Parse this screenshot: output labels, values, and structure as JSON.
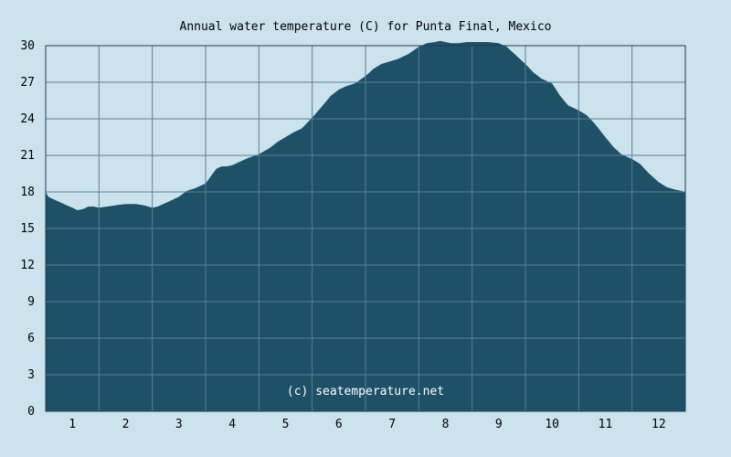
{
  "chart_data": {
    "type": "area",
    "title": "Annual water temperature (C) for Punta Final, Mexico",
    "watermark": "(c) seatemperature.net",
    "xlabel": "",
    "ylabel": "",
    "x_ticks": [
      "1",
      "2",
      "3",
      "4",
      "5",
      "6",
      "7",
      "8",
      "9",
      "10",
      "11",
      "12"
    ],
    "y_ticks": [
      "0",
      "3",
      "6",
      "9",
      "12",
      "15",
      "18",
      "21",
      "24",
      "27",
      "30"
    ],
    "ylim": [
      0,
      30
    ],
    "xlim_months": [
      0.5,
      12.5
    ],
    "grid": true,
    "colors": {
      "background": "#cce3ee",
      "fill": "#1e5068",
      "grid": "#5a7f94",
      "axis": "#1e3e52",
      "watermark": "#ffffff"
    },
    "series": [
      {
        "x": [
          0.5,
          0.55,
          0.6,
          0.75,
          0.9,
          1.0,
          1.1,
          1.2,
          1.3,
          1.4,
          1.5,
          1.65,
          1.8,
          2.0,
          2.2,
          2.35,
          2.5,
          2.6,
          2.8,
          3.0,
          3.15,
          3.3,
          3.5,
          3.6,
          3.7,
          3.8,
          3.9,
          4.0,
          4.15,
          4.3,
          4.5,
          4.7,
          4.85,
          5.0,
          5.15,
          5.3,
          5.5,
          5.7,
          5.85,
          6.0,
          6.15,
          6.3,
          6.5,
          6.65,
          6.8,
          6.95,
          7.1,
          7.3,
          7.5,
          7.65,
          7.8,
          7.9,
          8.0,
          8.1,
          8.25,
          8.4,
          8.6,
          8.8,
          9.0,
          9.15,
          9.3,
          9.5,
          9.65,
          9.8,
          10.0,
          10.15,
          10.3,
          10.5,
          10.65,
          10.8,
          11.0,
          11.15,
          11.3,
          11.5,
          11.65,
          11.8,
          12.0,
          12.15,
          12.3,
          12.42,
          12.5
        ],
        "y": [
          18.0,
          17.6,
          17.5,
          17.2,
          16.9,
          16.7,
          16.5,
          16.6,
          16.8,
          16.8,
          16.7,
          16.8,
          16.9,
          17.0,
          17.0,
          16.9,
          16.7,
          16.8,
          17.2,
          17.6,
          18.1,
          18.3,
          18.7,
          19.3,
          19.9,
          20.1,
          20.1,
          20.2,
          20.5,
          20.8,
          21.1,
          21.6,
          22.1,
          22.5,
          22.9,
          23.2,
          24.1,
          25.1,
          25.9,
          26.4,
          26.7,
          26.9,
          27.5,
          28.1,
          28.5,
          28.7,
          28.9,
          29.3,
          29.9,
          30.2,
          30.3,
          30.4,
          30.3,
          30.2,
          30.2,
          30.3,
          30.3,
          30.3,
          30.2,
          29.9,
          29.3,
          28.5,
          27.8,
          27.3,
          26.9,
          25.9,
          25.1,
          24.7,
          24.3,
          23.6,
          22.5,
          21.7,
          21.1,
          20.7,
          20.3,
          19.6,
          18.8,
          18.4,
          18.2,
          18.1,
          18.0
        ]
      }
    ]
  }
}
